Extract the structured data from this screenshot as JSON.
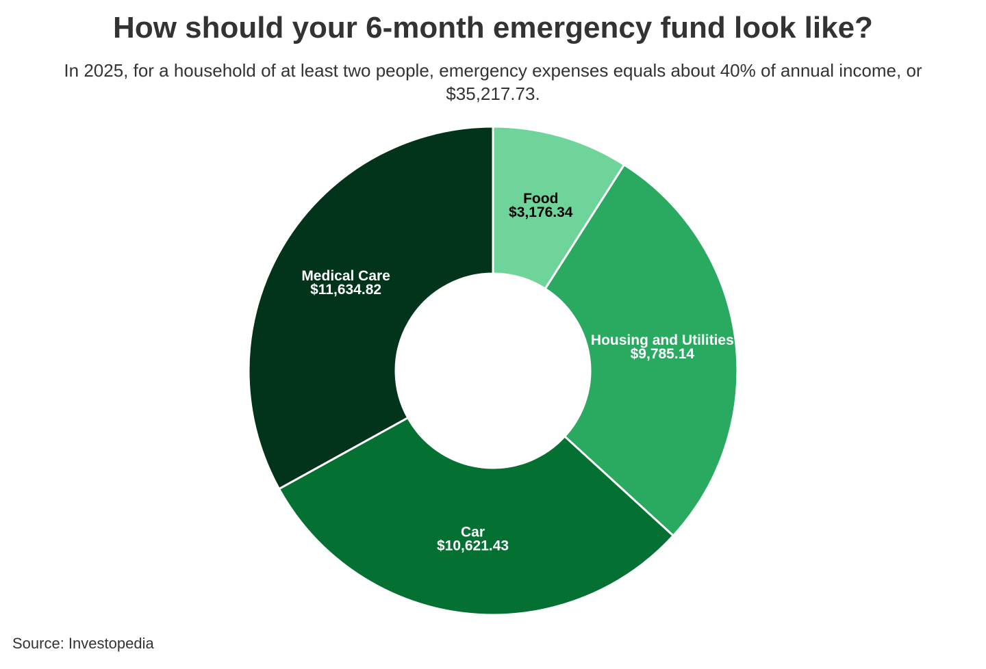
{
  "chart_data": {
    "type": "pie",
    "title": "How should your 6-month emergency fund look like?",
    "subtitle": "In 2025, for a household of at least two people, emergency expenses equals about 40% of annual income, or $35,217.73.",
    "source": "Source: Investopedia",
    "categories": [
      "Food",
      "Housing and Utilities",
      "Car",
      "Medical Care"
    ],
    "values": [
      3176.34,
      9785.14,
      10621.43,
      11634.82
    ],
    "value_labels": [
      "$3,176.34",
      "$9,785.14",
      "$10,621.43",
      "$11,634.82"
    ],
    "colors": [
      "#6fd49a",
      "#2aa961",
      "#047032",
      "#02331b"
    ],
    "label_colors": [
      "#000000",
      "#ffffff",
      "#ffffff",
      "#ffffff"
    ],
    "donut": true
  }
}
